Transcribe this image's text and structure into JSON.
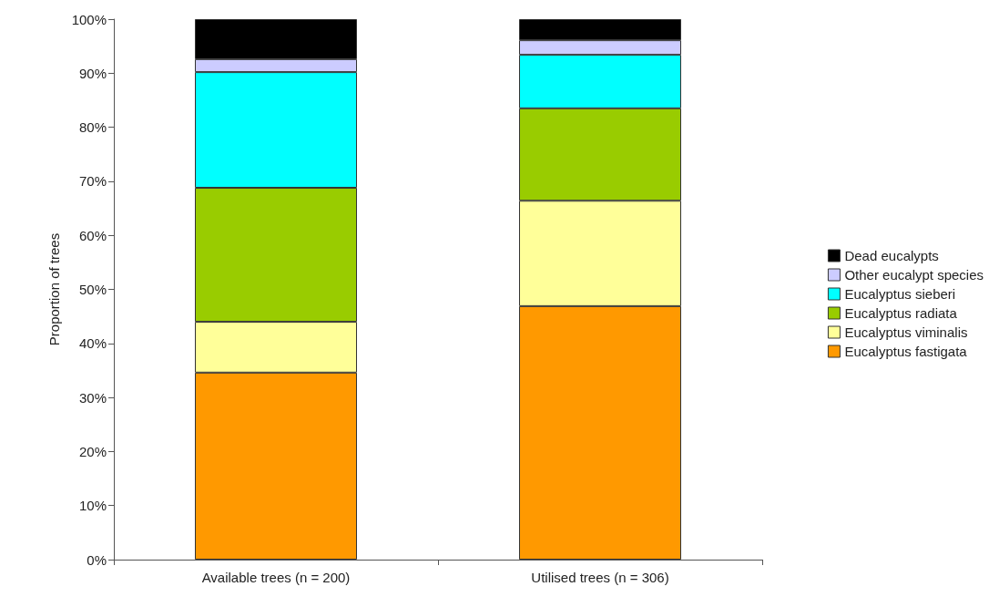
{
  "chart_data": {
    "type": "bar",
    "stacked": true,
    "ylabel": "Proportion of trees",
    "categories": [
      "Available trees (n = 200)",
      "Utilised trees (n = 306)"
    ],
    "series": [
      {
        "name": "Eucalyptus fastigata",
        "color": "#ff9900",
        "values": [
          34.6,
          46.9
        ]
      },
      {
        "name": "Eucalyptus viminalis",
        "color": "#ffff99",
        "values": [
          9.4,
          19.5
        ]
      },
      {
        "name": "Eucalyptus radiata",
        "color": "#99cc00",
        "values": [
          24.8,
          17.1
        ]
      },
      {
        "name": "Eucalyptus sieberi",
        "color": "#00ffff",
        "values": [
          21.4,
          9.9
        ]
      },
      {
        "name": "Other eucalypt species",
        "color": "#ccccff",
        "values": [
          2.4,
          2.7
        ]
      },
      {
        "name": "Dead eucalypts",
        "color": "#000000",
        "values": [
          7.4,
          3.9
        ]
      }
    ],
    "ylim": [
      0,
      100
    ],
    "yticks": [
      {
        "value": 0,
        "label": "0%"
      },
      {
        "value": 10,
        "label": "10%"
      },
      {
        "value": 20,
        "label": "20%"
      },
      {
        "value": 30,
        "label": "30%"
      },
      {
        "value": 40,
        "label": "40%"
      },
      {
        "value": 50,
        "label": "50%"
      },
      {
        "value": 60,
        "label": "60%"
      },
      {
        "value": 70,
        "label": "70%"
      },
      {
        "value": 80,
        "label": "80%"
      },
      {
        "value": 90,
        "label": "90%"
      },
      {
        "value": 100,
        "label": "100%"
      }
    ],
    "grid": false,
    "legend": "right"
  }
}
